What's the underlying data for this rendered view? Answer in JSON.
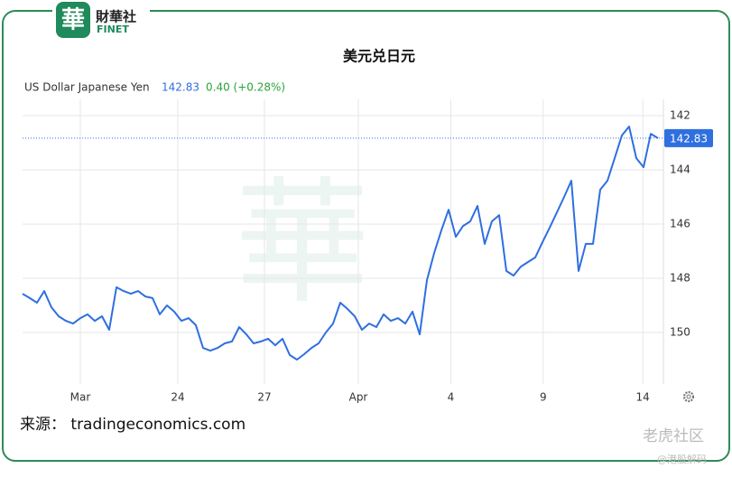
{
  "brand": {
    "name": "財華社",
    "latin": "FINET"
  },
  "source": "来源： tradingeconomics.com",
  "watermark": {
    "community": "老虎社区",
    "handle": "@港股解码"
  },
  "chart_data": {
    "type": "line",
    "title": "美元兑日元",
    "series_label": "US Dollar Japanese Yen",
    "current_value": 142.83,
    "change": "0.40 (+0.28%)",
    "color": "#2f6fe0",
    "y_reversed": true,
    "grid": true,
    "xlim": [
      0,
      88.75
    ],
    "xticks": [
      {
        "value": 8,
        "label": "Mar"
      },
      {
        "value": 21.5,
        "label": "24"
      },
      {
        "value": 33.5,
        "label": "27"
      },
      {
        "value": 46.5,
        "label": "Apr"
      },
      {
        "value": 59.3,
        "label": "4"
      },
      {
        "value": 72.1,
        "label": "9"
      },
      {
        "value": 85.9,
        "label": "14"
      }
    ],
    "ylim": [
      141.4,
      151.9
    ],
    "yticks": [
      142,
      144,
      146,
      148,
      150
    ],
    "x": [
      0,
      1,
      2,
      3,
      4,
      5,
      6,
      7,
      8,
      9,
      10,
      11,
      12,
      13,
      14,
      15,
      16,
      17,
      18,
      19,
      20,
      21,
      22,
      23,
      24,
      25,
      26,
      27,
      28,
      29,
      30,
      31,
      32,
      33,
      34,
      35,
      36,
      37,
      38,
      39,
      40,
      41,
      42,
      43,
      44,
      45,
      46,
      47,
      48,
      49,
      50,
      51,
      52,
      53,
      54,
      55,
      56,
      57,
      58,
      59,
      60,
      61,
      62,
      63,
      64,
      65,
      66,
      67,
      68,
      69,
      70,
      71,
      72,
      73,
      74,
      75,
      76,
      77,
      78,
      79,
      80,
      81,
      82,
      83,
      84,
      85,
      86,
      87,
      88
    ],
    "values": [
      148.57,
      148.73,
      148.9,
      148.47,
      149.07,
      149.4,
      149.57,
      149.67,
      149.47,
      149.33,
      149.57,
      149.4,
      149.9,
      148.33,
      148.47,
      148.57,
      148.47,
      148.67,
      148.73,
      149.33,
      149.0,
      149.23,
      149.57,
      149.47,
      149.73,
      150.57,
      150.67,
      150.57,
      150.4,
      150.33,
      149.8,
      150.07,
      150.4,
      150.33,
      150.23,
      150.47,
      150.23,
      150.83,
      151.0,
      150.8,
      150.57,
      150.4,
      150.0,
      149.67,
      148.9,
      149.13,
      149.4,
      149.9,
      149.67,
      149.8,
      149.33,
      149.57,
      149.47,
      149.67,
      149.23,
      150.07,
      148.07,
      147.07,
      146.23,
      145.47,
      146.47,
      146.07,
      145.9,
      145.33,
      146.73,
      145.9,
      145.67,
      147.73,
      147.9,
      147.57,
      147.4,
      147.23,
      146.67,
      146.13,
      145.57,
      145.0,
      144.4,
      147.73,
      146.73,
      146.73,
      144.73,
      144.4,
      143.57,
      142.73,
      142.4,
      143.57,
      143.9,
      142.67,
      142.83
    ]
  }
}
